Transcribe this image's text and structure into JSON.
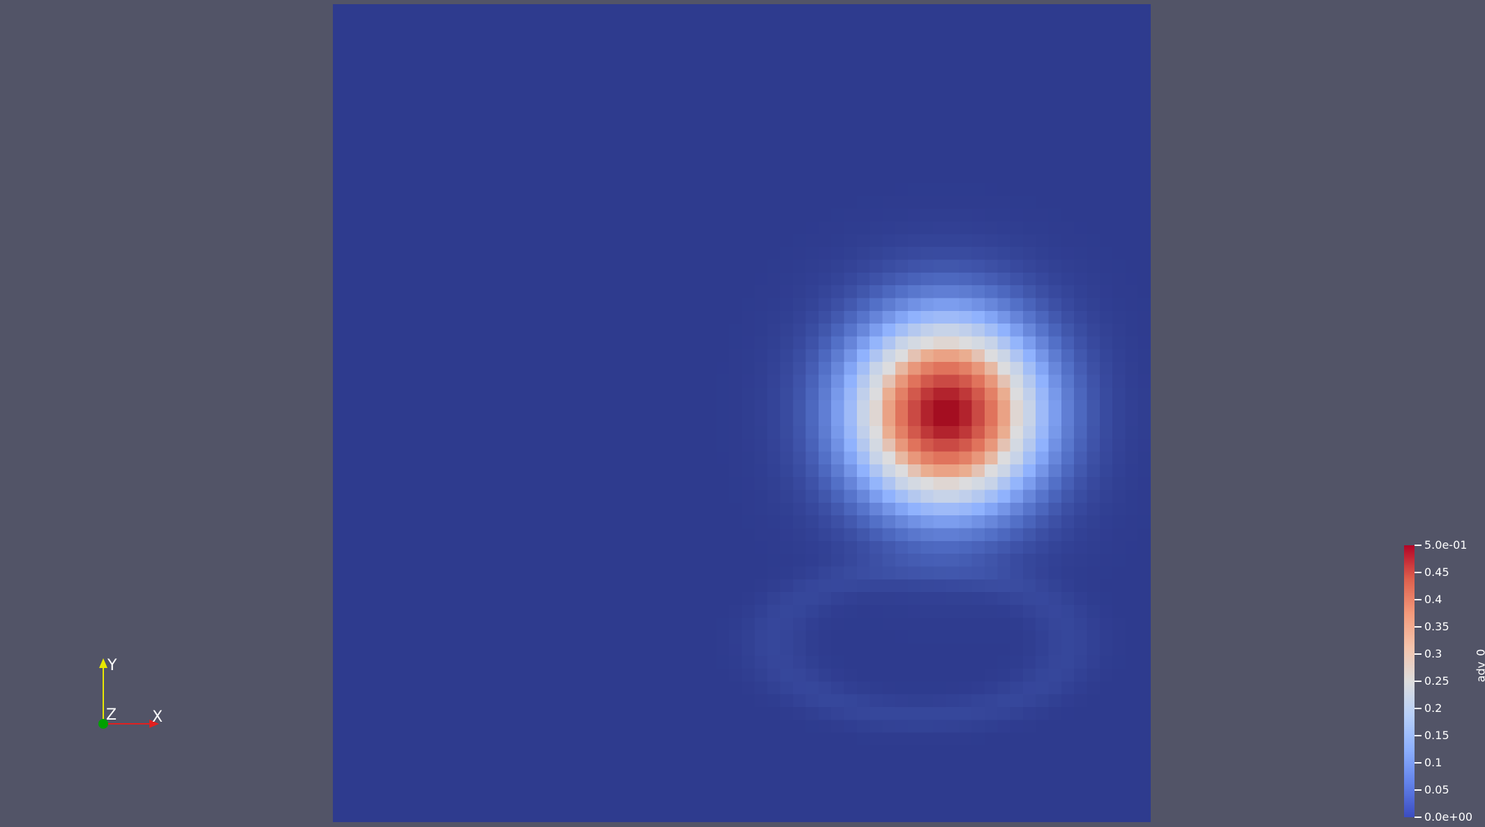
{
  "scene": {
    "background_color": "#525467",
    "field_min_color": "#2e3b8e",
    "colormap": "cool-to-warm"
  },
  "field": {
    "name": "adv_0",
    "min": 0.0,
    "max": 0.5,
    "peak_value": 0.5,
    "peak_location_fraction": [
      0.75,
      0.5
    ],
    "grid_cells": 64
  },
  "axes": {
    "x_label": "X",
    "y_label": "Y",
    "z_label": "Z",
    "x_color": "#e02020",
    "y_color": "#e8e800",
    "z_color": "#00a000"
  },
  "colorbar": {
    "title": "adv_0",
    "labels": [
      "5.0e-01",
      "0.45",
      "0.4",
      "0.35",
      "0.3",
      "0.25",
      "0.2",
      "0.15",
      "0.1",
      "0.05",
      "0.0e+00"
    ]
  }
}
